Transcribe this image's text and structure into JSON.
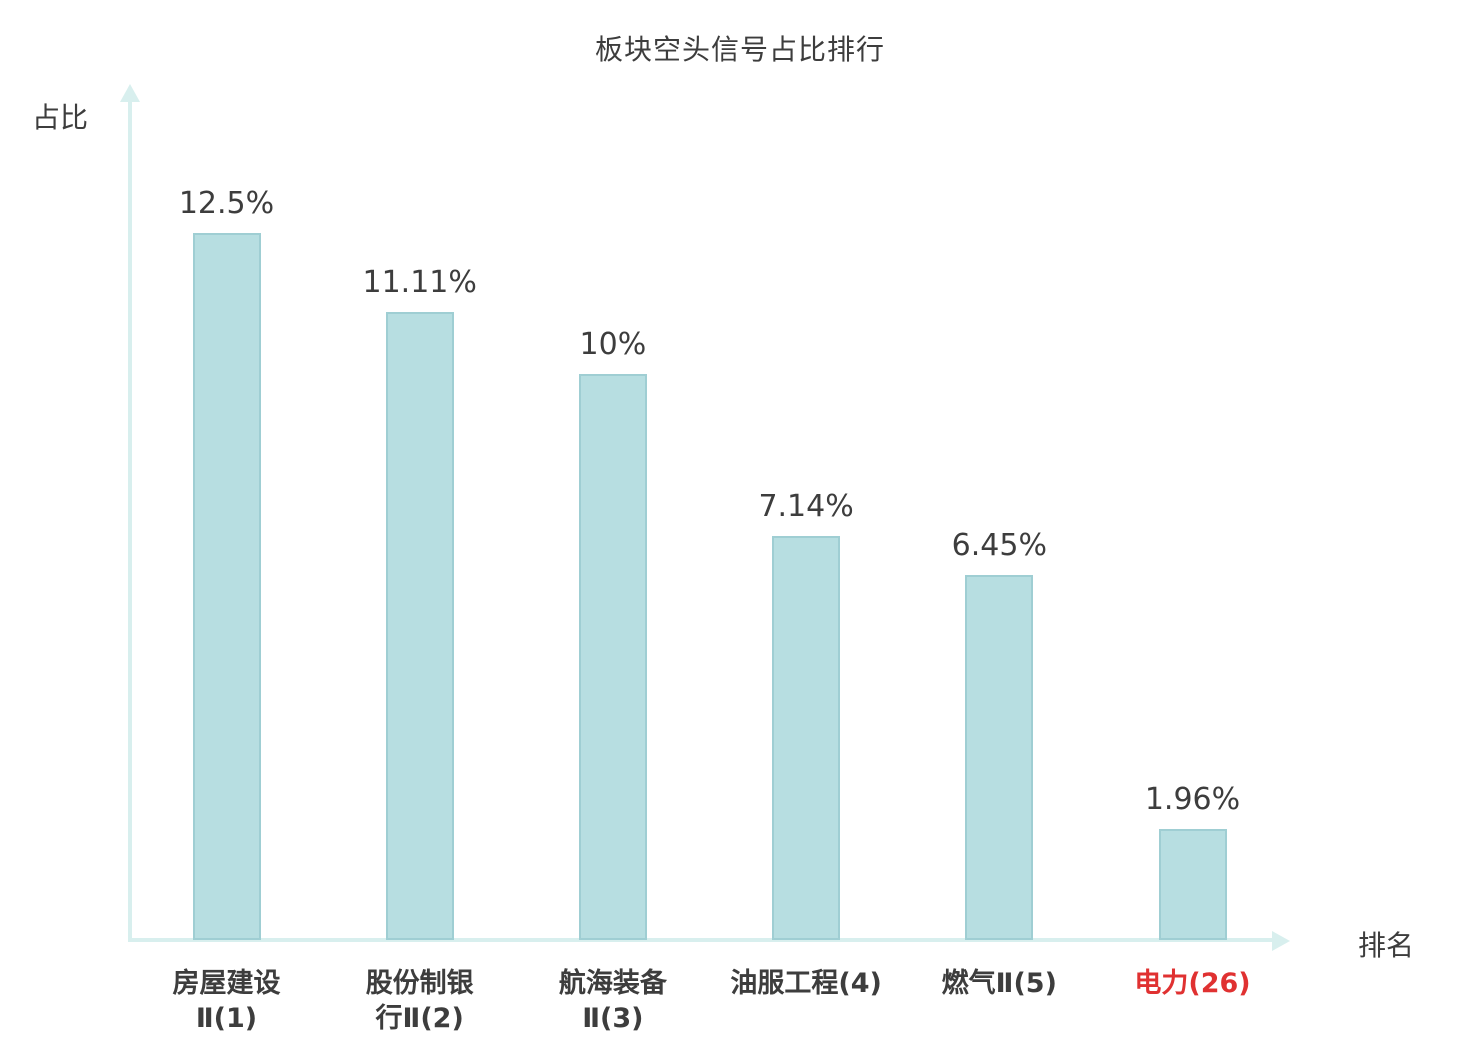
{
  "chart_data": {
    "type": "bar",
    "title": "板块空头信号占比排行",
    "xlabel": "排名",
    "ylabel": "占比",
    "categories": [
      "房屋建设Ⅱ(1)",
      "股份制银行Ⅱ(2)",
      "航海装备Ⅱ(3)",
      "油服工程(4)",
      "燃气Ⅱ(5)",
      "电力(26)"
    ],
    "category_lines": [
      [
        "房屋建设",
        "Ⅱ(1)"
      ],
      [
        "股份制银",
        "行Ⅱ(2)"
      ],
      [
        "航海装备",
        "Ⅱ(3)"
      ],
      [
        "油服工程(4)"
      ],
      [
        "燃气Ⅱ(5)"
      ],
      [
        "电力(26)"
      ]
    ],
    "values": [
      12.5,
      11.11,
      10,
      7.14,
      6.45,
      1.96
    ],
    "value_labels": [
      "12.5%",
      "11.11%",
      "10%",
      "7.14%",
      "6.45%",
      "1.96%"
    ],
    "highlight_index": 5,
    "ylim": [
      0,
      13.2
    ],
    "grid": false,
    "legend": "none",
    "colors": {
      "bar_fill": "#b7dee1",
      "bar_border": "#9fced3",
      "axis": "#d8efee",
      "text": "#3d3d3d",
      "highlight_text": "#e03131"
    }
  }
}
